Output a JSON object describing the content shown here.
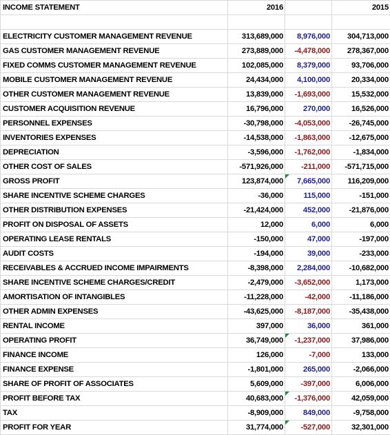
{
  "header": {
    "title": "INCOME STATEMENT",
    "year_current": "2016",
    "year_change": "",
    "year_prior": "2015"
  },
  "rows": [
    {
      "label": "ELECTRICITY CUSTOMER MANAGEMENT REVENUE",
      "y2016": "313,689,000",
      "change": "8,976,000",
      "y2015": "304,713,000",
      "sign": "pos",
      "flag": false,
      "total": false
    },
    {
      "label": "GAS CUSTOMER MANAGEMENT REVENUE",
      "y2016": "273,889,000",
      "change": "-4,478,000",
      "y2015": "278,367,000",
      "sign": "neg",
      "flag": false,
      "total": false
    },
    {
      "label": "FIXED COMMS CUSTOMER MANAGEMENT REVENUE",
      "y2016": "102,085,000",
      "change": "8,379,000",
      "y2015": "93,706,000",
      "sign": "pos",
      "flag": false,
      "total": false
    },
    {
      "label": "MOBILE CUSTOMER MANAGEMENT REVENUE",
      "y2016": "24,434,000",
      "change": "4,100,000",
      "y2015": "20,334,000",
      "sign": "pos",
      "flag": false,
      "total": false
    },
    {
      "label": "OTHER CUSTOMER MANAGEMENT REVENUE",
      "y2016": "13,839,000",
      "change": "-1,693,000",
      "y2015": "15,532,000",
      "sign": "neg",
      "flag": false,
      "total": false
    },
    {
      "label": "CUSTOMER ACQUISITION REVENUE",
      "y2016": "16,796,000",
      "change": "270,000",
      "y2015": "16,526,000",
      "sign": "pos",
      "flag": false,
      "total": false
    },
    {
      "label": "PERSONNEL EXPENSES",
      "y2016": "-30,798,000",
      "change": "-4,053,000",
      "y2015": "-26,745,000",
      "sign": "neg",
      "flag": false,
      "total": false
    },
    {
      "label": "INVENTORIES EXPENSES",
      "y2016": "-14,538,000",
      "change": "-1,863,000",
      "y2015": "-12,675,000",
      "sign": "neg",
      "flag": false,
      "total": false
    },
    {
      "label": "DEPRECIATION",
      "y2016": "-3,596,000",
      "change": "-1,762,000",
      "y2015": "-1,834,000",
      "sign": "neg",
      "flag": false,
      "total": false
    },
    {
      "label": "OTHER COST OF SALES",
      "y2016": "-571,926,000",
      "change": "-211,000",
      "y2015": "-571,715,000",
      "sign": "neg",
      "flag": false,
      "total": false
    },
    {
      "label": "GROSS PROFIT",
      "y2016": "123,874,000",
      "change": "7,665,000",
      "y2015": "116,209,000",
      "sign": "pos",
      "flag": true,
      "total": true
    },
    {
      "label": "SHARE INCENTIVE SCHEME CHARGES",
      "y2016": "-36,000",
      "change": "115,000",
      "y2015": "-151,000",
      "sign": "pos",
      "flag": false,
      "total": false
    },
    {
      "label": "OTHER DISTRIBUTION EXPENSES",
      "y2016": "-21,424,000",
      "change": "452,000",
      "y2015": "-21,876,000",
      "sign": "pos",
      "flag": false,
      "total": false
    },
    {
      "label": "PROFIT ON DISPOSAL OF ASSETS",
      "y2016": "12,000",
      "change": "6,000",
      "y2015": "6,000",
      "sign": "pos",
      "flag": false,
      "total": false
    },
    {
      "label": "OPERATING LEASE RENTALS",
      "y2016": "-150,000",
      "change": "47,000",
      "y2015": "-197,000",
      "sign": "pos",
      "flag": false,
      "total": false
    },
    {
      "label": "AUDIT COSTS",
      "y2016": "-194,000",
      "change": "39,000",
      "y2015": "-233,000",
      "sign": "pos",
      "flag": false,
      "total": false
    },
    {
      "label": "RECEIVABLES & ACCRUED INCOME IMPAIRMENTS",
      "y2016": "-8,398,000",
      "change": "2,284,000",
      "y2015": "-10,682,000",
      "sign": "pos",
      "flag": false,
      "total": false
    },
    {
      "label": "SHARE INCENTIVE SCHEME CHARGES/CREDIT",
      "y2016": "-2,479,000",
      "change": "-3,652,000",
      "y2015": "1,173,000",
      "sign": "neg",
      "flag": false,
      "total": false
    },
    {
      "label": "AMORTISATION OF INTANGIBLES",
      "y2016": "-11,228,000",
      "change": "-42,000",
      "y2015": "-11,186,000",
      "sign": "neg",
      "flag": false,
      "total": false
    },
    {
      "label": "OTHER ADMIN EXPENSES",
      "y2016": "-43,625,000",
      "change": "-8,187,000",
      "y2015": "-35,438,000",
      "sign": "neg",
      "flag": false,
      "total": false
    },
    {
      "label": "RENTAL INCOME",
      "y2016": "397,000",
      "change": "36,000",
      "y2015": "361,000",
      "sign": "pos",
      "flag": false,
      "total": false
    },
    {
      "label": "OPERATING PROFIT",
      "y2016": "36,749,000",
      "change": "-1,237,000",
      "y2015": "37,986,000",
      "sign": "neg",
      "flag": true,
      "total": true
    },
    {
      "label": "FINANCE INCOME",
      "y2016": "126,000",
      "change": "-7,000",
      "y2015": "133,000",
      "sign": "neg",
      "flag": false,
      "total": false
    },
    {
      "label": "FINANCE EXPENSE",
      "y2016": "-1,801,000",
      "change": "265,000",
      "y2015": "-2,066,000",
      "sign": "pos",
      "flag": false,
      "total": false
    },
    {
      "label": "SHARE OF PROFIT OF ASSOCIATES",
      "y2016": "5,609,000",
      "change": "-397,000",
      "y2015": "6,006,000",
      "sign": "neg",
      "flag": false,
      "total": false
    },
    {
      "label": "PROFIT BEFORE TAX",
      "y2016": "40,683,000",
      "change": "-1,376,000",
      "y2015": "42,059,000",
      "sign": "neg",
      "flag": true,
      "total": true
    },
    {
      "label": "TAX",
      "y2016": "-8,909,000",
      "change": "849,000",
      "y2015": "-9,758,000",
      "sign": "pos",
      "flag": false,
      "total": false
    },
    {
      "label": "PROFIT FOR YEAR",
      "y2016": "31,774,000",
      "change": "-527,000",
      "y2015": "32,301,000",
      "sign": "neg",
      "flag": true,
      "total": true
    }
  ],
  "colors": {
    "positive_change": "#1f1f8f",
    "negative_change": "#8b1a1a",
    "comment_flag": "#1e8c3a",
    "gridline": "#d9d9d9"
  }
}
